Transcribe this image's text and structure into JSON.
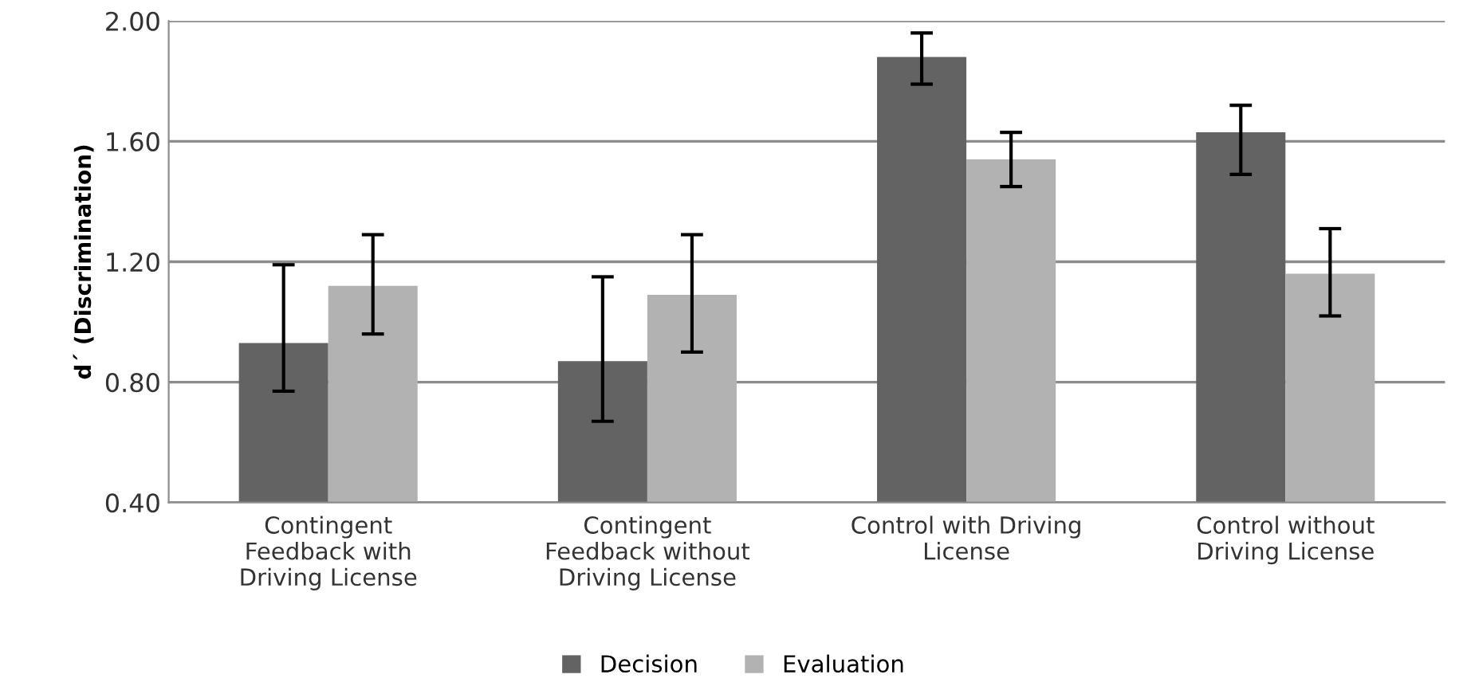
{
  "chart_data": {
    "type": "bar",
    "ylabel": "d´ (Discrimination)",
    "categories": [
      "Contingent\nFeedback with\nDriving License",
      "Contingent\nFeedback without\nDriving License",
      "Control with Driving\nLicense",
      "Control without\nDriving License"
    ],
    "series": [
      {
        "name": "Decision",
        "color": "#636363",
        "values": [
          0.93,
          0.87,
          1.88,
          1.63
        ],
        "errors": [
          [
            0.77,
            1.19
          ],
          [
            0.67,
            1.15
          ],
          [
            1.79,
            1.96
          ],
          [
            1.49,
            1.72
          ]
        ]
      },
      {
        "name": "Evaluation",
        "color": "#b2b2b2",
        "values": [
          1.12,
          1.09,
          1.54,
          1.16
        ],
        "errors": [
          [
            0.96,
            1.29
          ],
          [
            0.9,
            1.29
          ],
          [
            1.45,
            1.63
          ],
          [
            1.02,
            1.31
          ]
        ]
      }
    ],
    "ylim": [
      0.4,
      2.0
    ],
    "yticks": [
      {
        "value": 0.4,
        "label": "0.40"
      },
      {
        "value": 0.8,
        "label": "0.80"
      },
      {
        "value": 1.2,
        "label": "1.20"
      },
      {
        "value": 1.6,
        "label": "1.60"
      },
      {
        "value": 2.0,
        "label": "2.00"
      }
    ],
    "grid": "y",
    "legend": "bottom"
  }
}
